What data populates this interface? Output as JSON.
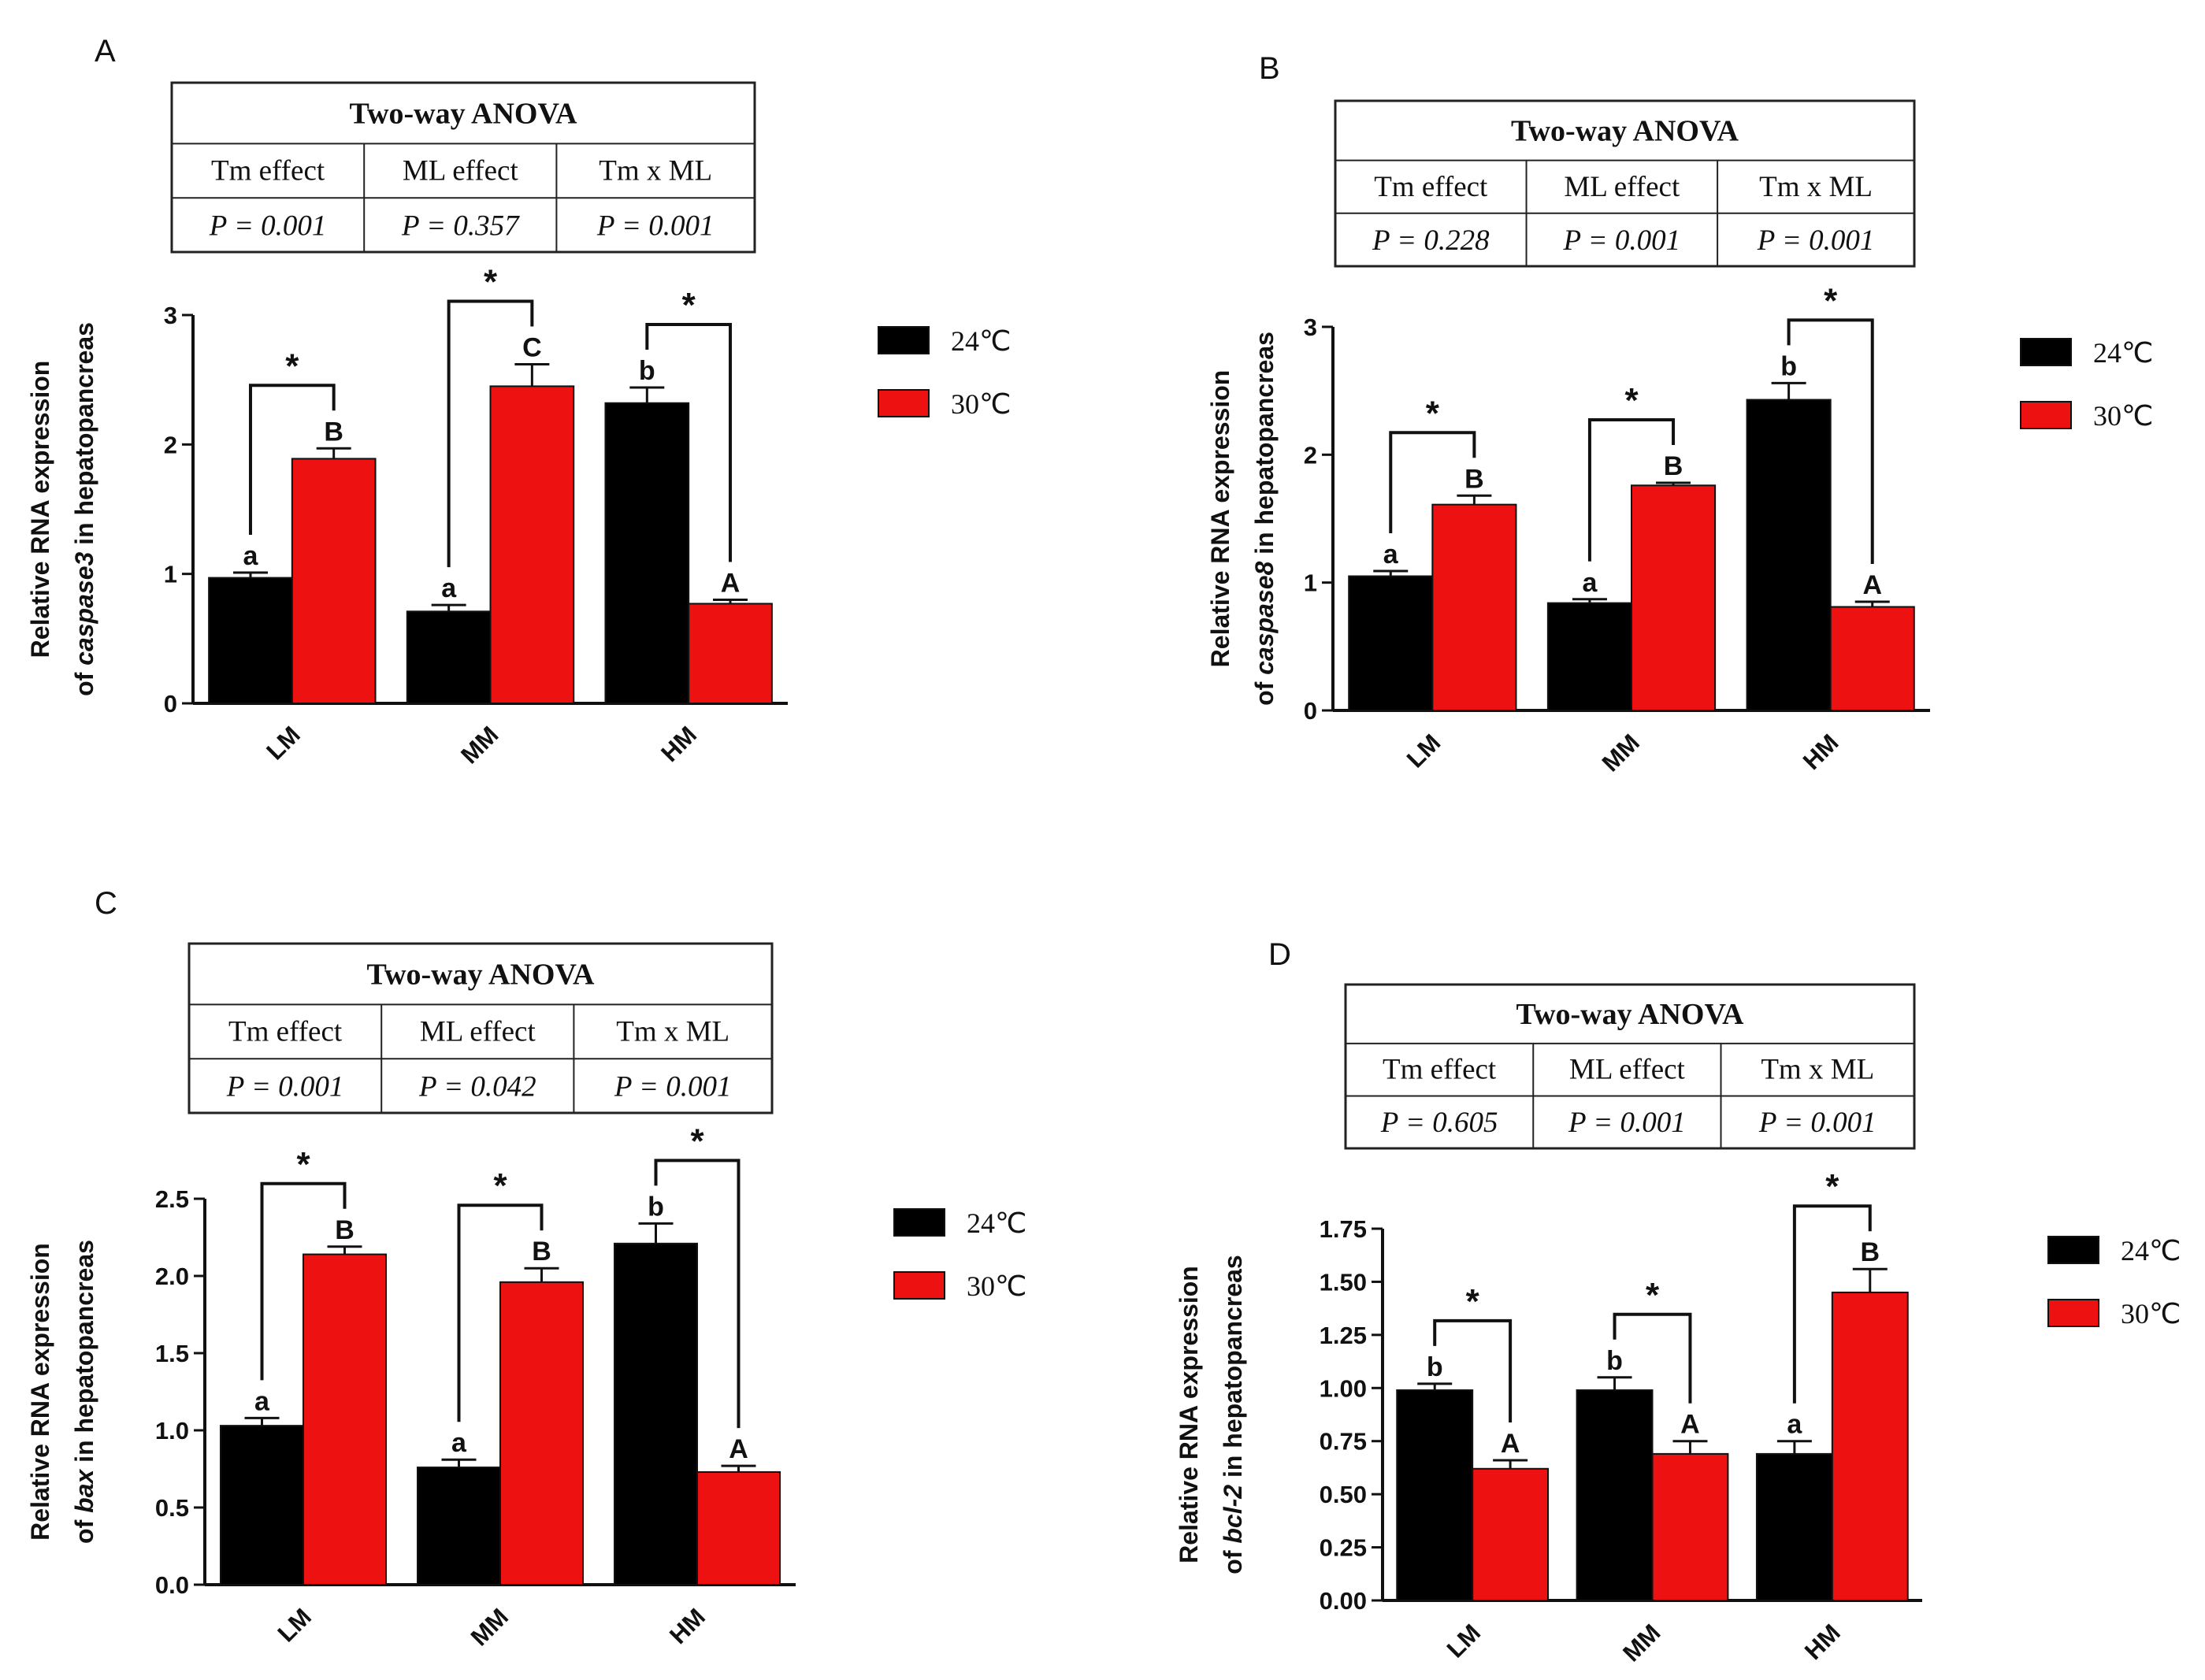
{
  "legend": [
    {
      "label": "24℃",
      "color": "#000000"
    },
    {
      "label": "30℃",
      "color": "#ee1111"
    }
  ],
  "anova_header": {
    "title": "Two-way ANOVA",
    "columns": [
      "Tm effect",
      "ML effect",
      "Tm x ML"
    ]
  },
  "y_label_line1": "Relative RNA expression",
  "y_label_prefix": "of ",
  "y_label_suffix": " in hepatopancreas",
  "chart_data": [
    {
      "panel": "A",
      "type": "bar",
      "gene": "caspase3",
      "categories": [
        "LM",
        "MM",
        "HM"
      ],
      "series": [
        {
          "name": "24℃",
          "values": [
            0.97,
            0.71,
            2.32
          ],
          "errors": [
            0.04,
            0.05,
            0.12
          ],
          "letters": [
            "a",
            "a",
            "b"
          ]
        },
        {
          "name": "30℃",
          "values": [
            1.89,
            2.45,
            0.77
          ],
          "errors": [
            0.08,
            0.17,
            0.03
          ],
          "letters": [
            "B",
            "C",
            "A"
          ]
        }
      ],
      "significance": [
        "*",
        "*",
        "*"
      ],
      "ylim": [
        0,
        3
      ],
      "yticks": [
        "0",
        "1",
        "2",
        "3"
      ],
      "anova_p": [
        "P = 0.001",
        "P = 0.357",
        "P = 0.001"
      ]
    },
    {
      "panel": "B",
      "type": "bar",
      "gene": "caspase8",
      "categories": [
        "LM",
        "MM",
        "HM"
      ],
      "series": [
        {
          "name": "24℃",
          "values": [
            1.05,
            0.84,
            2.43
          ],
          "errors": [
            0.04,
            0.03,
            0.13
          ],
          "letters": [
            "a",
            "a",
            "b"
          ]
        },
        {
          "name": "30℃",
          "values": [
            1.61,
            1.76,
            0.81
          ],
          "errors": [
            0.07,
            0.02,
            0.04
          ],
          "letters": [
            "B",
            "B",
            "A"
          ]
        }
      ],
      "significance": [
        "*",
        "*",
        "*"
      ],
      "ylim": [
        0,
        3
      ],
      "yticks": [
        "0",
        "1",
        "2",
        "3"
      ],
      "anova_p": [
        "P = 0.228",
        "P = 0.001",
        "P = 0.001"
      ]
    },
    {
      "panel": "C",
      "type": "bar",
      "gene": "bax",
      "categories": [
        "LM",
        "MM",
        "HM"
      ],
      "series": [
        {
          "name": "24℃",
          "values": [
            1.03,
            0.76,
            2.21
          ],
          "errors": [
            0.05,
            0.05,
            0.13
          ],
          "letters": [
            "a",
            "a",
            "b"
          ]
        },
        {
          "name": "30℃",
          "values": [
            2.14,
            1.96,
            0.73
          ],
          "errors": [
            0.05,
            0.09,
            0.04
          ],
          "letters": [
            "B",
            "B",
            "A"
          ]
        }
      ],
      "significance": [
        "*",
        "*",
        "*"
      ],
      "ylim": [
        0,
        2.5
      ],
      "yticks": [
        "0.0",
        "0.5",
        "1.0",
        "1.5",
        "2.0",
        "2.5"
      ],
      "anova_p": [
        "P = 0.001",
        "P = 0.042",
        "P = 0.001"
      ]
    },
    {
      "panel": "D",
      "type": "bar",
      "gene": "bcl-2",
      "categories": [
        "LM",
        "MM",
        "HM"
      ],
      "series": [
        {
          "name": "24℃",
          "values": [
            0.99,
            0.99,
            0.69
          ],
          "errors": [
            0.03,
            0.06,
            0.06
          ],
          "letters": [
            "b",
            "b",
            "a"
          ]
        },
        {
          "name": "30℃",
          "values": [
            0.62,
            0.69,
            1.45
          ],
          "errors": [
            0.04,
            0.06,
            0.11
          ],
          "letters": [
            "A",
            "A",
            "B"
          ]
        }
      ],
      "significance": [
        "*",
        "*",
        "*"
      ],
      "ylim": [
        0,
        1.75
      ],
      "yticks": [
        "0.00",
        "0.25",
        "0.50",
        "0.75",
        "1.00",
        "1.25",
        "1.50",
        "1.75"
      ],
      "anova_p": [
        "P = 0.605",
        "P = 0.001",
        "P = 0.001"
      ]
    }
  ]
}
